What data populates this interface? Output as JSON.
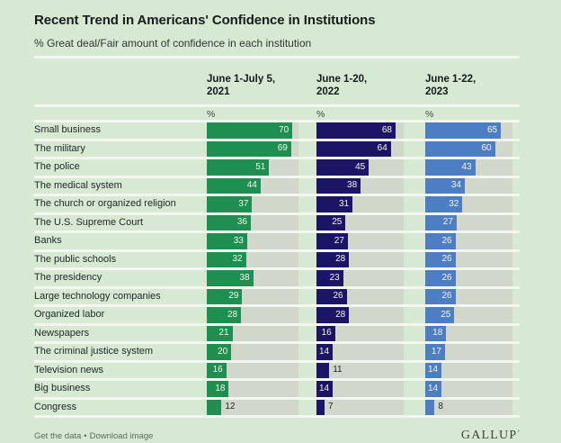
{
  "header": {
    "title": "Recent Trend in Americans' Confidence in Institutions",
    "subtitle": "% Great deal/Fair amount of confidence in each institution"
  },
  "columns": [
    {
      "label_line1": "June 1-July 5,",
      "label_line2": "2021",
      "unit": "%",
      "color": "#1e8f50"
    },
    {
      "label_line1": "June 1-20,",
      "label_line2": "2022",
      "unit": "%",
      "color": "#1c1464"
    },
    {
      "label_line1": "June 1-22,",
      "label_line2": "2023",
      "unit": "%",
      "color": "#4d7dc2"
    }
  ],
  "chart_data": {
    "type": "bar",
    "orientation": "horizontal",
    "title": "Recent Trend in Americans' Confidence in Institutions",
    "subtitle": "% Great deal/Fair amount of confidence in each institution",
    "unit": "% Great deal/Fair amount of confidence",
    "categories": [
      "Small business",
      "The military",
      "The police",
      "The medical system",
      "The church or organized religion",
      "The U.S. Supreme Court",
      "Banks",
      "The public schools",
      "The presidency",
      "Large technology companies",
      "Organized labor",
      "Newspapers",
      "The criminal justice system",
      "Television news",
      "Big business",
      "Congress"
    ],
    "series": [
      {
        "name": "June 1-July 5, 2021",
        "values": [
          70,
          69,
          51,
          44,
          37,
          36,
          33,
          32,
          38,
          29,
          28,
          21,
          20,
          16,
          18,
          12
        ]
      },
      {
        "name": "June 1-20, 2022",
        "values": [
          68,
          64,
          45,
          38,
          31,
          25,
          27,
          28,
          23,
          26,
          28,
          16,
          14,
          11,
          14,
          7
        ]
      },
      {
        "name": "June 1-22, 2023",
        "values": [
          65,
          60,
          43,
          34,
          32,
          27,
          26,
          26,
          26,
          26,
          25,
          18,
          17,
          14,
          14,
          8
        ]
      }
    ],
    "value_scale_max": 75,
    "inside_label_min_value": 14,
    "legend_position": "column headers",
    "grid": false
  },
  "footer": {
    "links": [
      "Get the data",
      "Download image"
    ],
    "separator": "•",
    "brand": "GALLUP",
    "brand_mark": "’"
  },
  "colors": {
    "background": "#d8e9d3",
    "track": "#d1d7cb",
    "separator": "#f3f7f0",
    "bar_2021": "#1e8f50",
    "bar_2022": "#1c1464",
    "bar_2023": "#4d7dc2",
    "value_inside_text": "#f4f8f2",
    "value_outside_text": "#1d2227"
  }
}
